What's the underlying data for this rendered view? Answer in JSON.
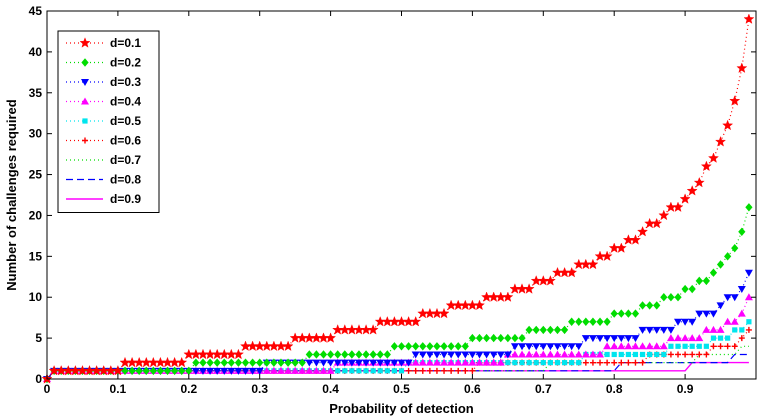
{
  "chart_data": {
    "type": "line",
    "title": "",
    "xlabel": "Probability of detection",
    "ylabel": "Number of challenges required",
    "xlim": [
      0,
      1
    ],
    "ylim": [
      0,
      45
    ],
    "xticks": [
      0,
      0.1,
      0.2,
      0.3,
      0.4,
      0.5,
      0.6,
      0.7,
      0.8,
      0.9
    ],
    "xtick_labels": [
      "0",
      "0.1",
      "0.2",
      "0.3",
      "0.4",
      "0.5",
      "0.6",
      "0.7",
      "0.8",
      "0.9"
    ],
    "yticks": [
      0,
      5,
      10,
      15,
      20,
      25,
      30,
      35,
      40,
      45
    ],
    "ytick_labels": [
      "0",
      "5",
      "10",
      "15",
      "20",
      "25",
      "30",
      "35",
      "40",
      "45"
    ],
    "legend_position": "top-left",
    "x_start": 0,
    "x_end": 0.99,
    "x_step": 0.01,
    "series": [
      {
        "name": "d=0.1",
        "d": 0.1,
        "color": "#ff0000",
        "marker": "star",
        "line": "dotted"
      },
      {
        "name": "d=0.2",
        "d": 0.2,
        "color": "#00dd00",
        "marker": "diamond",
        "line": "dotted"
      },
      {
        "name": "d=0.3",
        "d": 0.3,
        "color": "#0000ff",
        "marker": "triangle-down",
        "line": "dotted"
      },
      {
        "name": "d=0.4",
        "d": 0.4,
        "color": "#ff00ff",
        "marker": "triangle-up",
        "line": "dotted"
      },
      {
        "name": "d=0.5",
        "d": 0.5,
        "color": "#00e5ee",
        "marker": "square",
        "line": "dotted"
      },
      {
        "name": "d=0.6",
        "d": 0.6,
        "color": "#ff0000",
        "marker": "plus",
        "line": "dotted"
      },
      {
        "name": "d=0.7",
        "d": 0.7,
        "color": "#00dd00",
        "marker": "none",
        "line": "dotted"
      },
      {
        "name": "d=0.8",
        "d": 0.8,
        "color": "#0000ff",
        "marker": "none",
        "line": "dashed"
      },
      {
        "name": "d=0.9",
        "d": 0.9,
        "color": "#ff00ff",
        "marker": "none",
        "line": "solid"
      }
    ]
  }
}
